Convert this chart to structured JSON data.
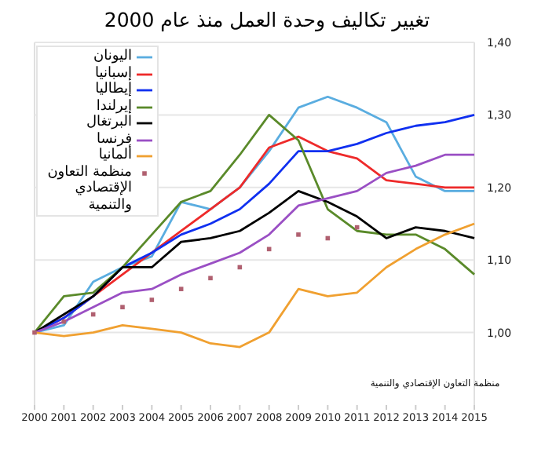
{
  "chart_data": {
    "type": "line",
    "title": "تغيير تكاليف وحدة العمل منذ عام 2000",
    "x": [
      2000,
      2001,
      2002,
      2003,
      2004,
      2005,
      2006,
      2007,
      2008,
      2009,
      2010,
      2011,
      2012,
      2013,
      2014,
      2015
    ],
    "series": [
      {
        "name": "اليونان",
        "color": "#5aade0",
        "values": [
          1.0,
          1.01,
          1.07,
          1.09,
          1.105,
          1.18,
          1.17,
          1.2,
          1.25,
          1.31,
          1.325,
          1.31,
          1.29,
          1.215,
          1.195,
          1.195
        ]
      },
      {
        "name": "إسبانيا",
        "color": "#ee2a2a",
        "values": [
          1.0,
          1.02,
          1.05,
          1.08,
          1.11,
          1.14,
          1.17,
          1.2,
          1.255,
          1.27,
          1.25,
          1.24,
          1.21,
          1.205,
          1.2,
          1.2
        ]
      },
      {
        "name": "إيطاليا",
        "color": "#1030f0",
        "values": [
          1.0,
          1.02,
          1.05,
          1.09,
          1.11,
          1.135,
          1.15,
          1.17,
          1.205,
          1.25,
          1.25,
          1.26,
          1.275,
          1.285,
          1.29,
          1.3
        ]
      },
      {
        "name": "إيرلندا",
        "color": "#5a8a2a",
        "values": [
          1.0,
          1.05,
          1.055,
          1.09,
          1.135,
          1.18,
          1.195,
          1.245,
          1.3,
          1.265,
          1.17,
          1.14,
          1.135,
          1.135,
          1.115,
          1.08
        ]
      },
      {
        "name": "البرتغال",
        "color": "#000000",
        "values": [
          1.0,
          1.025,
          1.05,
          1.09,
          1.09,
          1.125,
          1.13,
          1.14,
          1.165,
          1.195,
          1.18,
          1.16,
          1.13,
          1.145,
          1.14,
          1.13
        ]
      },
      {
        "name": "فرنسا",
        "color": "#9a4fc4",
        "values": [
          1.0,
          1.015,
          1.035,
          1.055,
          1.06,
          1.08,
          1.095,
          1.11,
          1.135,
          1.175,
          1.185,
          1.195,
          1.22,
          1.23,
          1.245,
          1.245
        ]
      },
      {
        "name": "ألمانيا",
        "color": "#f0a030",
        "values": [
          1.0,
          0.995,
          1.0,
          1.01,
          1.005,
          1.0,
          0.985,
          0.98,
          1.0,
          1.06,
          1.05,
          1.055,
          1.09,
          1.115,
          1.135,
          1.15
        ]
      },
      {
        "name": "منظمة التعاون الإقتصادي والتنمية",
        "color": "#b06070",
        "type": "scatter",
        "marker": "square",
        "values": [
          1.0,
          1.015,
          1.025,
          1.035,
          1.045,
          1.06,
          1.075,
          1.09,
          1.115,
          1.135,
          1.13,
          1.145,
          null,
          null,
          null,
          null
        ]
      }
    ],
    "xlim": [
      2000,
      2015
    ],
    "xticks": [
      2000,
      2001,
      2002,
      2003,
      2004,
      2005,
      2006,
      2007,
      2008,
      2009,
      2010,
      2011,
      2012,
      2013,
      2014,
      2015
    ],
    "ylim": [
      0.9,
      1.4
    ],
    "yticks": [
      {
        "value": 1.0,
        "label": "1,00"
      },
      {
        "value": 1.1,
        "label": "1,10"
      },
      {
        "value": 1.2,
        "label": "1,20"
      },
      {
        "value": 1.3,
        "label": "1,30"
      },
      {
        "value": 1.4,
        "label": "1,40"
      }
    ],
    "grid": "y",
    "legend": "top left",
    "annotations": [
      "منظمة التعاون الإقتصادي والتنمية"
    ]
  }
}
